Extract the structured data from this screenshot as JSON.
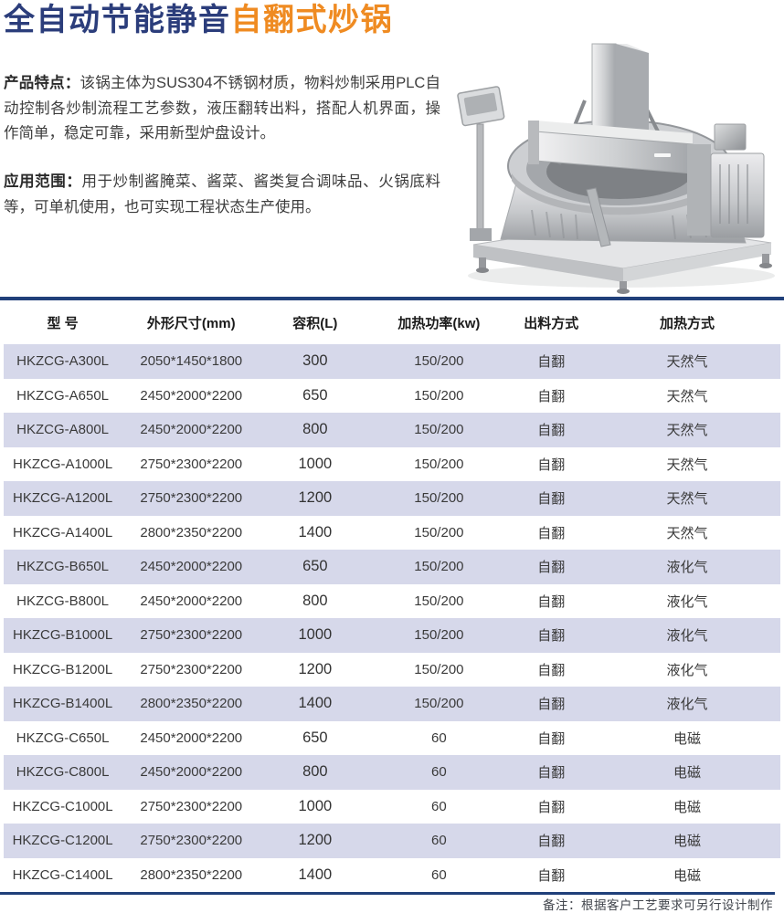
{
  "page": {
    "title": {
      "part_navy": "全自动节能静音",
      "part_orange": "自翻式炒锅"
    },
    "intro": {
      "features_label": "产品特点：",
      "features_text": "该锅主体为SUS304不锈钢材质，物料炒制采用PLC自动控制各炒制流程工艺参数，液压翻转出料，搭配人机界面，操作简单，稳定可靠，采用新型炉盘设计。",
      "application_label": "应用范围：",
      "application_text": "用于炒制酱腌菜、酱菜、酱类复合调味品、火锅底料等，可单机使用，也可实现工程状态生产使用。"
    },
    "product_image": {
      "alt": "不锈钢自翻式炒锅设备"
    },
    "colors": {
      "navy": "#2b3d7b",
      "orange": "#ef8b22",
      "stripe": "#d6d8ea",
      "rule": "#20407a"
    },
    "table": {
      "columns": [
        "型 号",
        "外形尺寸(mm)",
        "容积(L)",
        "加热功率(kw)",
        "出料方式",
        "加热方式"
      ],
      "rows": [
        [
          "HKZCG-A300L",
          "2050*1450*1800",
          "300",
          "150/200",
          "自翻",
          "天然气"
        ],
        [
          "HKZCG-A650L",
          "2450*2000*2200",
          "650",
          "150/200",
          "自翻",
          "天然气"
        ],
        [
          "HKZCG-A800L",
          "2450*2000*2200",
          "800",
          "150/200",
          "自翻",
          "天然气"
        ],
        [
          "HKZCG-A1000L",
          "2750*2300*2200",
          "1000",
          "150/200",
          "自翻",
          "天然气"
        ],
        [
          "HKZCG-A1200L",
          "2750*2300*2200",
          "1200",
          "150/200",
          "自翻",
          "天然气"
        ],
        [
          "HKZCG-A1400L",
          "2800*2350*2200",
          "1400",
          "150/200",
          "自翻",
          "天然气"
        ],
        [
          "HKZCG-B650L",
          "2450*2000*2200",
          "650",
          "150/200",
          "自翻",
          "液化气"
        ],
        [
          "HKZCG-B800L",
          "2450*2000*2200",
          "800",
          "150/200",
          "自翻",
          "液化气"
        ],
        [
          "HKZCG-B1000L",
          "2750*2300*2200",
          "1000",
          "150/200",
          "自翻",
          "液化气"
        ],
        [
          "HKZCG-B1200L",
          "2750*2300*2200",
          "1200",
          "150/200",
          "自翻",
          "液化气"
        ],
        [
          "HKZCG-B1400L",
          "2800*2350*2200",
          "1400",
          "150/200",
          "自翻",
          "液化气"
        ],
        [
          "HKZCG-C650L",
          "2450*2000*2200",
          "650",
          "60",
          "自翻",
          "电磁"
        ],
        [
          "HKZCG-C800L",
          "2450*2000*2200",
          "800",
          "60",
          "自翻",
          "电磁"
        ],
        [
          "HKZCG-C1000L",
          "2750*2300*2200",
          "1000",
          "60",
          "自翻",
          "电磁"
        ],
        [
          "HKZCG-C1200L",
          "2750*2300*2200",
          "1200",
          "60",
          "自翻",
          "电磁"
        ],
        [
          "HKZCG-C1400L",
          "2800*2350*2200",
          "1400",
          "60",
          "自翻",
          "电磁"
        ]
      ]
    },
    "footer": {
      "note": "备注：根据客户工艺要求可另行设计制作"
    }
  }
}
